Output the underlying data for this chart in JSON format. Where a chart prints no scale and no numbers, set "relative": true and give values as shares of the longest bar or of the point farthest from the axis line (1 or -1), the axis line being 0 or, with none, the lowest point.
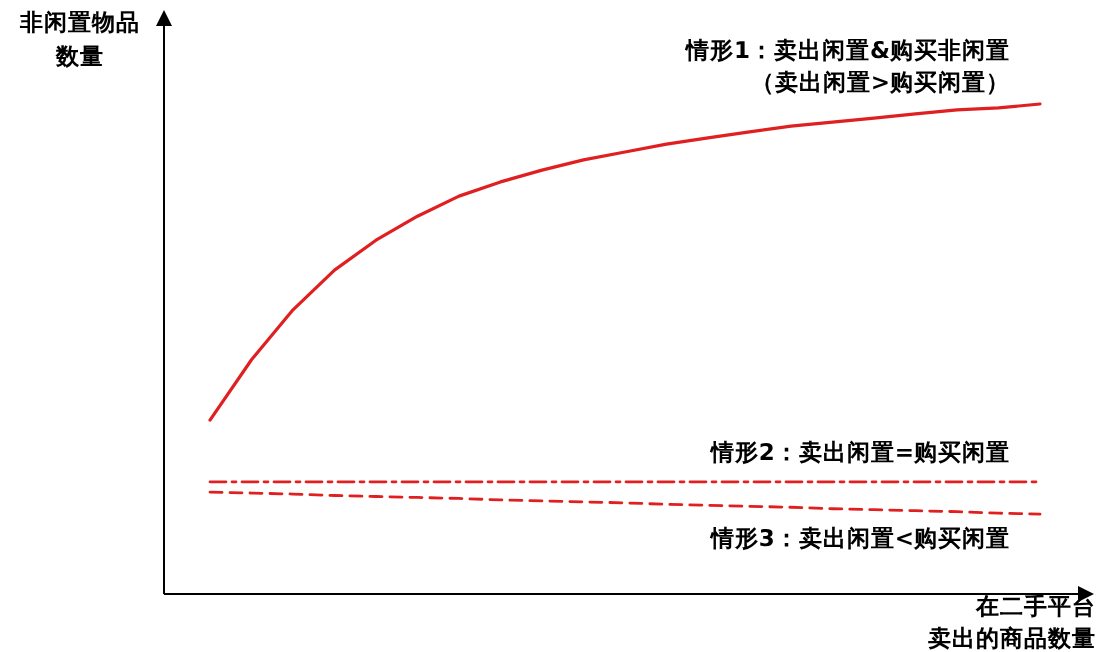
{
  "chart_data": {
    "type": "line",
    "relative": true,
    "xlabel": "在二手平台卖出的商品数量",
    "ylabel": "非闲置物品数量",
    "categories": [
      null,
      null,
      null,
      null,
      null,
      null,
      null,
      null,
      null,
      null,
      null,
      null,
      null,
      null,
      null,
      null,
      null,
      null,
      null,
      null,
      null
    ],
    "series": [
      {
        "name": "情形1：卖出闲置&购买非闲置",
        "color": "#e02020",
        "line_style": "solid",
        "values": [
          0.355,
          0.478,
          0.58,
          0.661,
          0.722,
          0.771,
          0.812,
          0.841,
          0.865,
          0.886,
          0.902,
          0.918,
          0.931,
          0.943,
          0.955,
          0.963,
          0.971,
          0.98,
          0.988,
          0.992,
          1
        ]
      },
      {
        "name": "情形2：卖出闲置=购买闲置",
        "color": "#e02020",
        "line_style": "dashdot",
        "values": [
          0.229,
          0.229,
          0.229,
          0.229,
          0.229,
          0.229,
          0.229,
          0.229,
          0.229,
          0.229,
          0.229,
          0.229,
          0.229,
          0.229,
          0.229,
          0.229,
          0.229,
          0.229,
          0.229,
          0.229,
          0.229
        ]
      },
      {
        "name": "情形3：卖出闲置<购买闲置",
        "color": "#e02020",
        "line_style": "dashed",
        "values": [
          0.208,
          0.206,
          0.204,
          0.201,
          0.199,
          0.197,
          0.195,
          0.192,
          0.19,
          0.188,
          0.186,
          0.183,
          0.181,
          0.179,
          0.177,
          0.174,
          0.172,
          0.17,
          0.168,
          0.165,
          0.163
        ]
      }
    ],
    "annotations": [
      "（卖出闲置>购买闲置）"
    ]
  }
}
